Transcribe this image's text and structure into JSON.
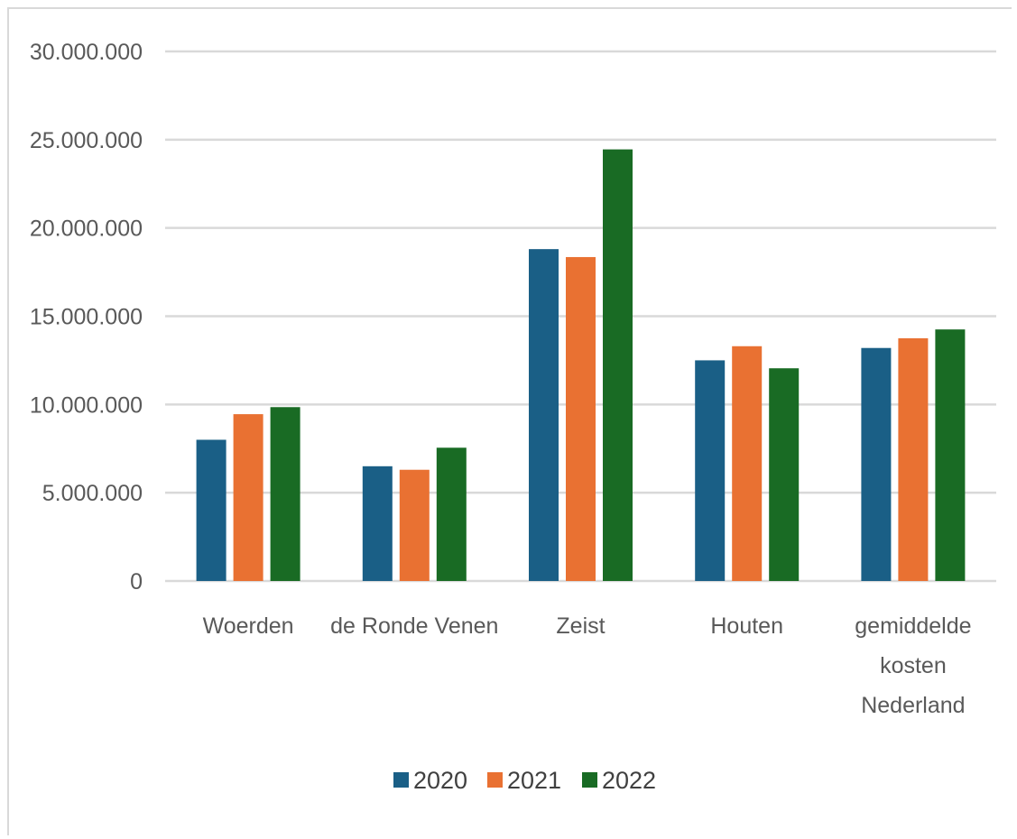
{
  "chart_data": {
    "type": "bar",
    "categories": [
      [
        "Woerden"
      ],
      [
        "de Ronde Venen"
      ],
      [
        "Zeist"
      ],
      [
        "Houten"
      ],
      [
        "gemiddelde",
        "kosten",
        "Nederland"
      ]
    ],
    "series": [
      {
        "name": "2020",
        "color": "#1a5f86",
        "values": [
          8000000,
          6500000,
          18800000,
          12500000,
          13200000
        ]
      },
      {
        "name": "2021",
        "color": "#e97132",
        "values": [
          9450000,
          6300000,
          18350000,
          13300000,
          13750000
        ]
      },
      {
        "name": "2022",
        "color": "#196b24",
        "values": [
          9850000,
          7550000,
          24450000,
          12050000,
          14250000
        ]
      }
    ],
    "y_ticks": [
      {
        "value": 0,
        "label": "0"
      },
      {
        "value": 5000000,
        "label": "5.000.000"
      },
      {
        "value": 10000000,
        "label": "10.000.000"
      },
      {
        "value": 15000000,
        "label": "15.000.000"
      },
      {
        "value": 20000000,
        "label": "20.000.000"
      },
      {
        "value": 25000000,
        "label": "25.000.000"
      },
      {
        "value": 30000000,
        "label": "30.000.000"
      }
    ],
    "ylim": [
      0,
      30000000
    ],
    "grid": true,
    "legend": "bottom",
    "title": "",
    "xlabel": "",
    "ylabel": ""
  }
}
